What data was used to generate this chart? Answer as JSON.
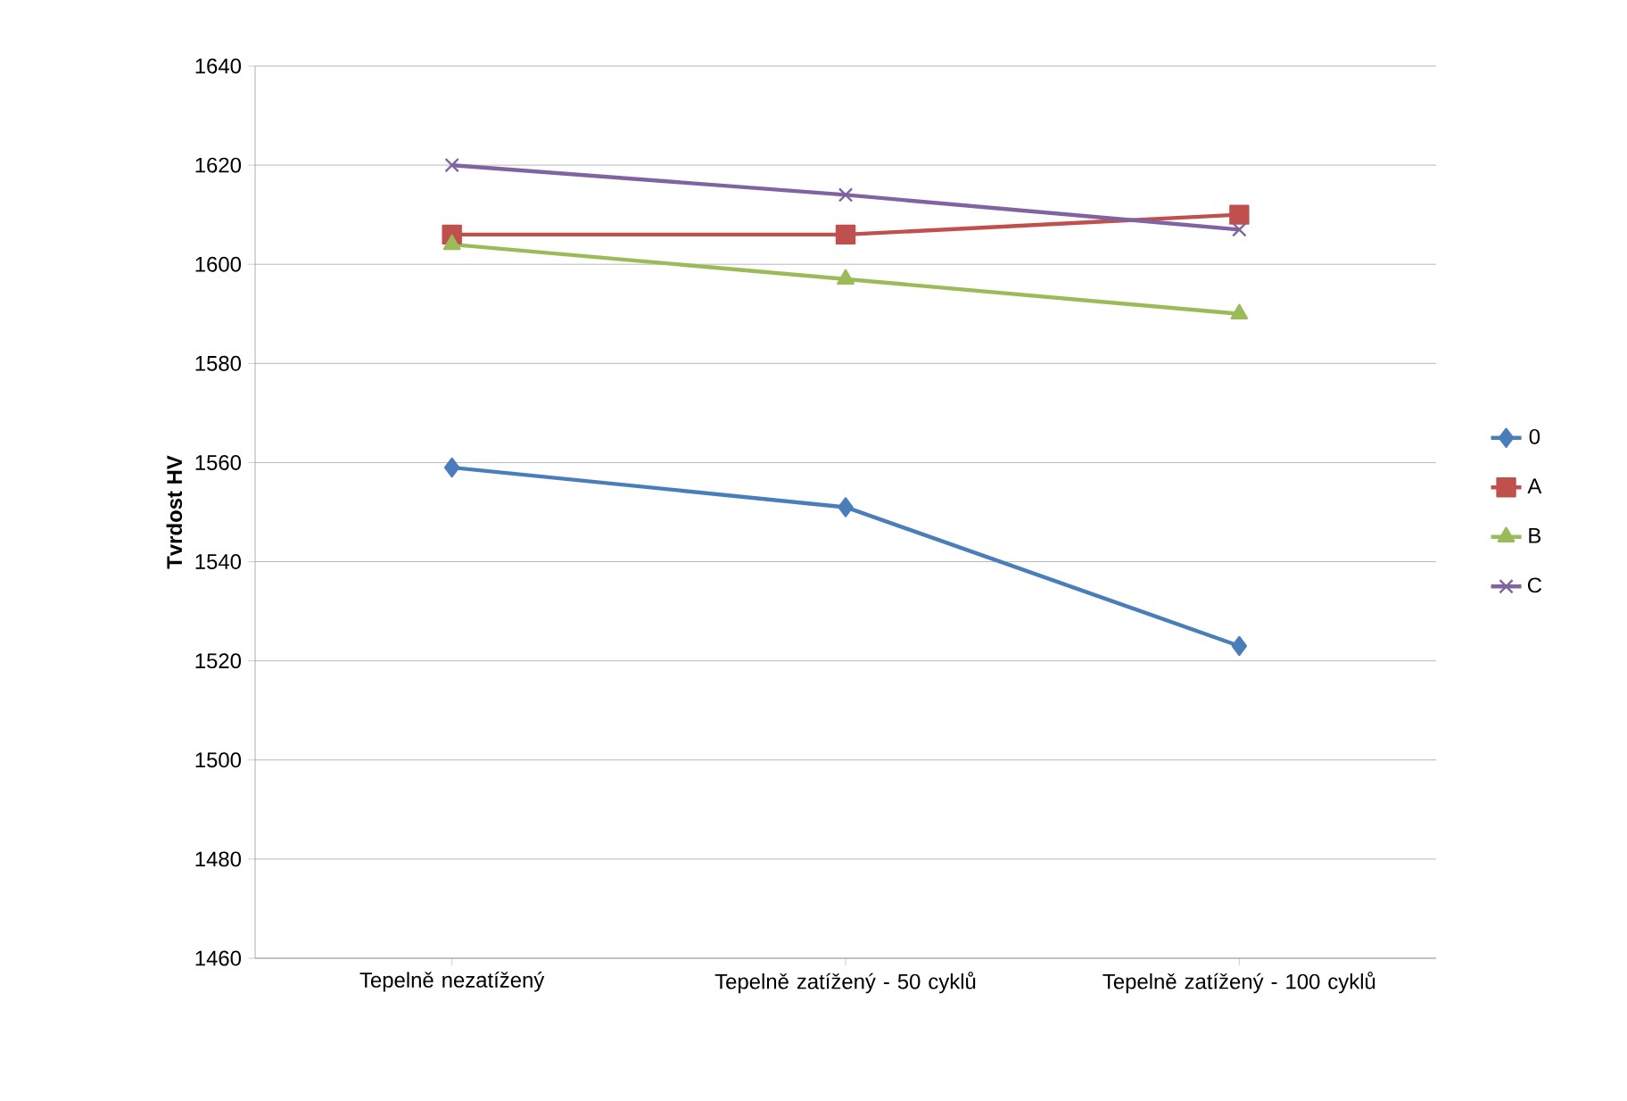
{
  "chart_data": {
    "type": "line",
    "ylabel": "Tvrdost HV",
    "categories": [
      "Tepelně nezatížený",
      "Tepelně zatížený - 50 cyklů",
      "Tepelně zatížený - 100 cyklů"
    ],
    "series": [
      {
        "name": "0",
        "color": "#4a7ebb",
        "marker": "diamond",
        "values": [
          1559,
          1551,
          1523
        ]
      },
      {
        "name": "A",
        "color": "#c0504d",
        "marker": "square",
        "values": [
          1606,
          1606,
          1610
        ]
      },
      {
        "name": "B",
        "color": "#9bbb59",
        "marker": "triangle",
        "values": [
          1604,
          1597,
          1590
        ]
      },
      {
        "name": "C",
        "color": "#8064a2",
        "marker": "cross",
        "values": [
          1620,
          1614,
          1607
        ]
      }
    ],
    "ylim": [
      1460,
      1640
    ],
    "yticks": [
      1460,
      1480,
      1500,
      1520,
      1540,
      1560,
      1580,
      1600,
      1620,
      1640
    ],
    "grid": "y",
    "legend": "right",
    "line_style": "solid"
  }
}
